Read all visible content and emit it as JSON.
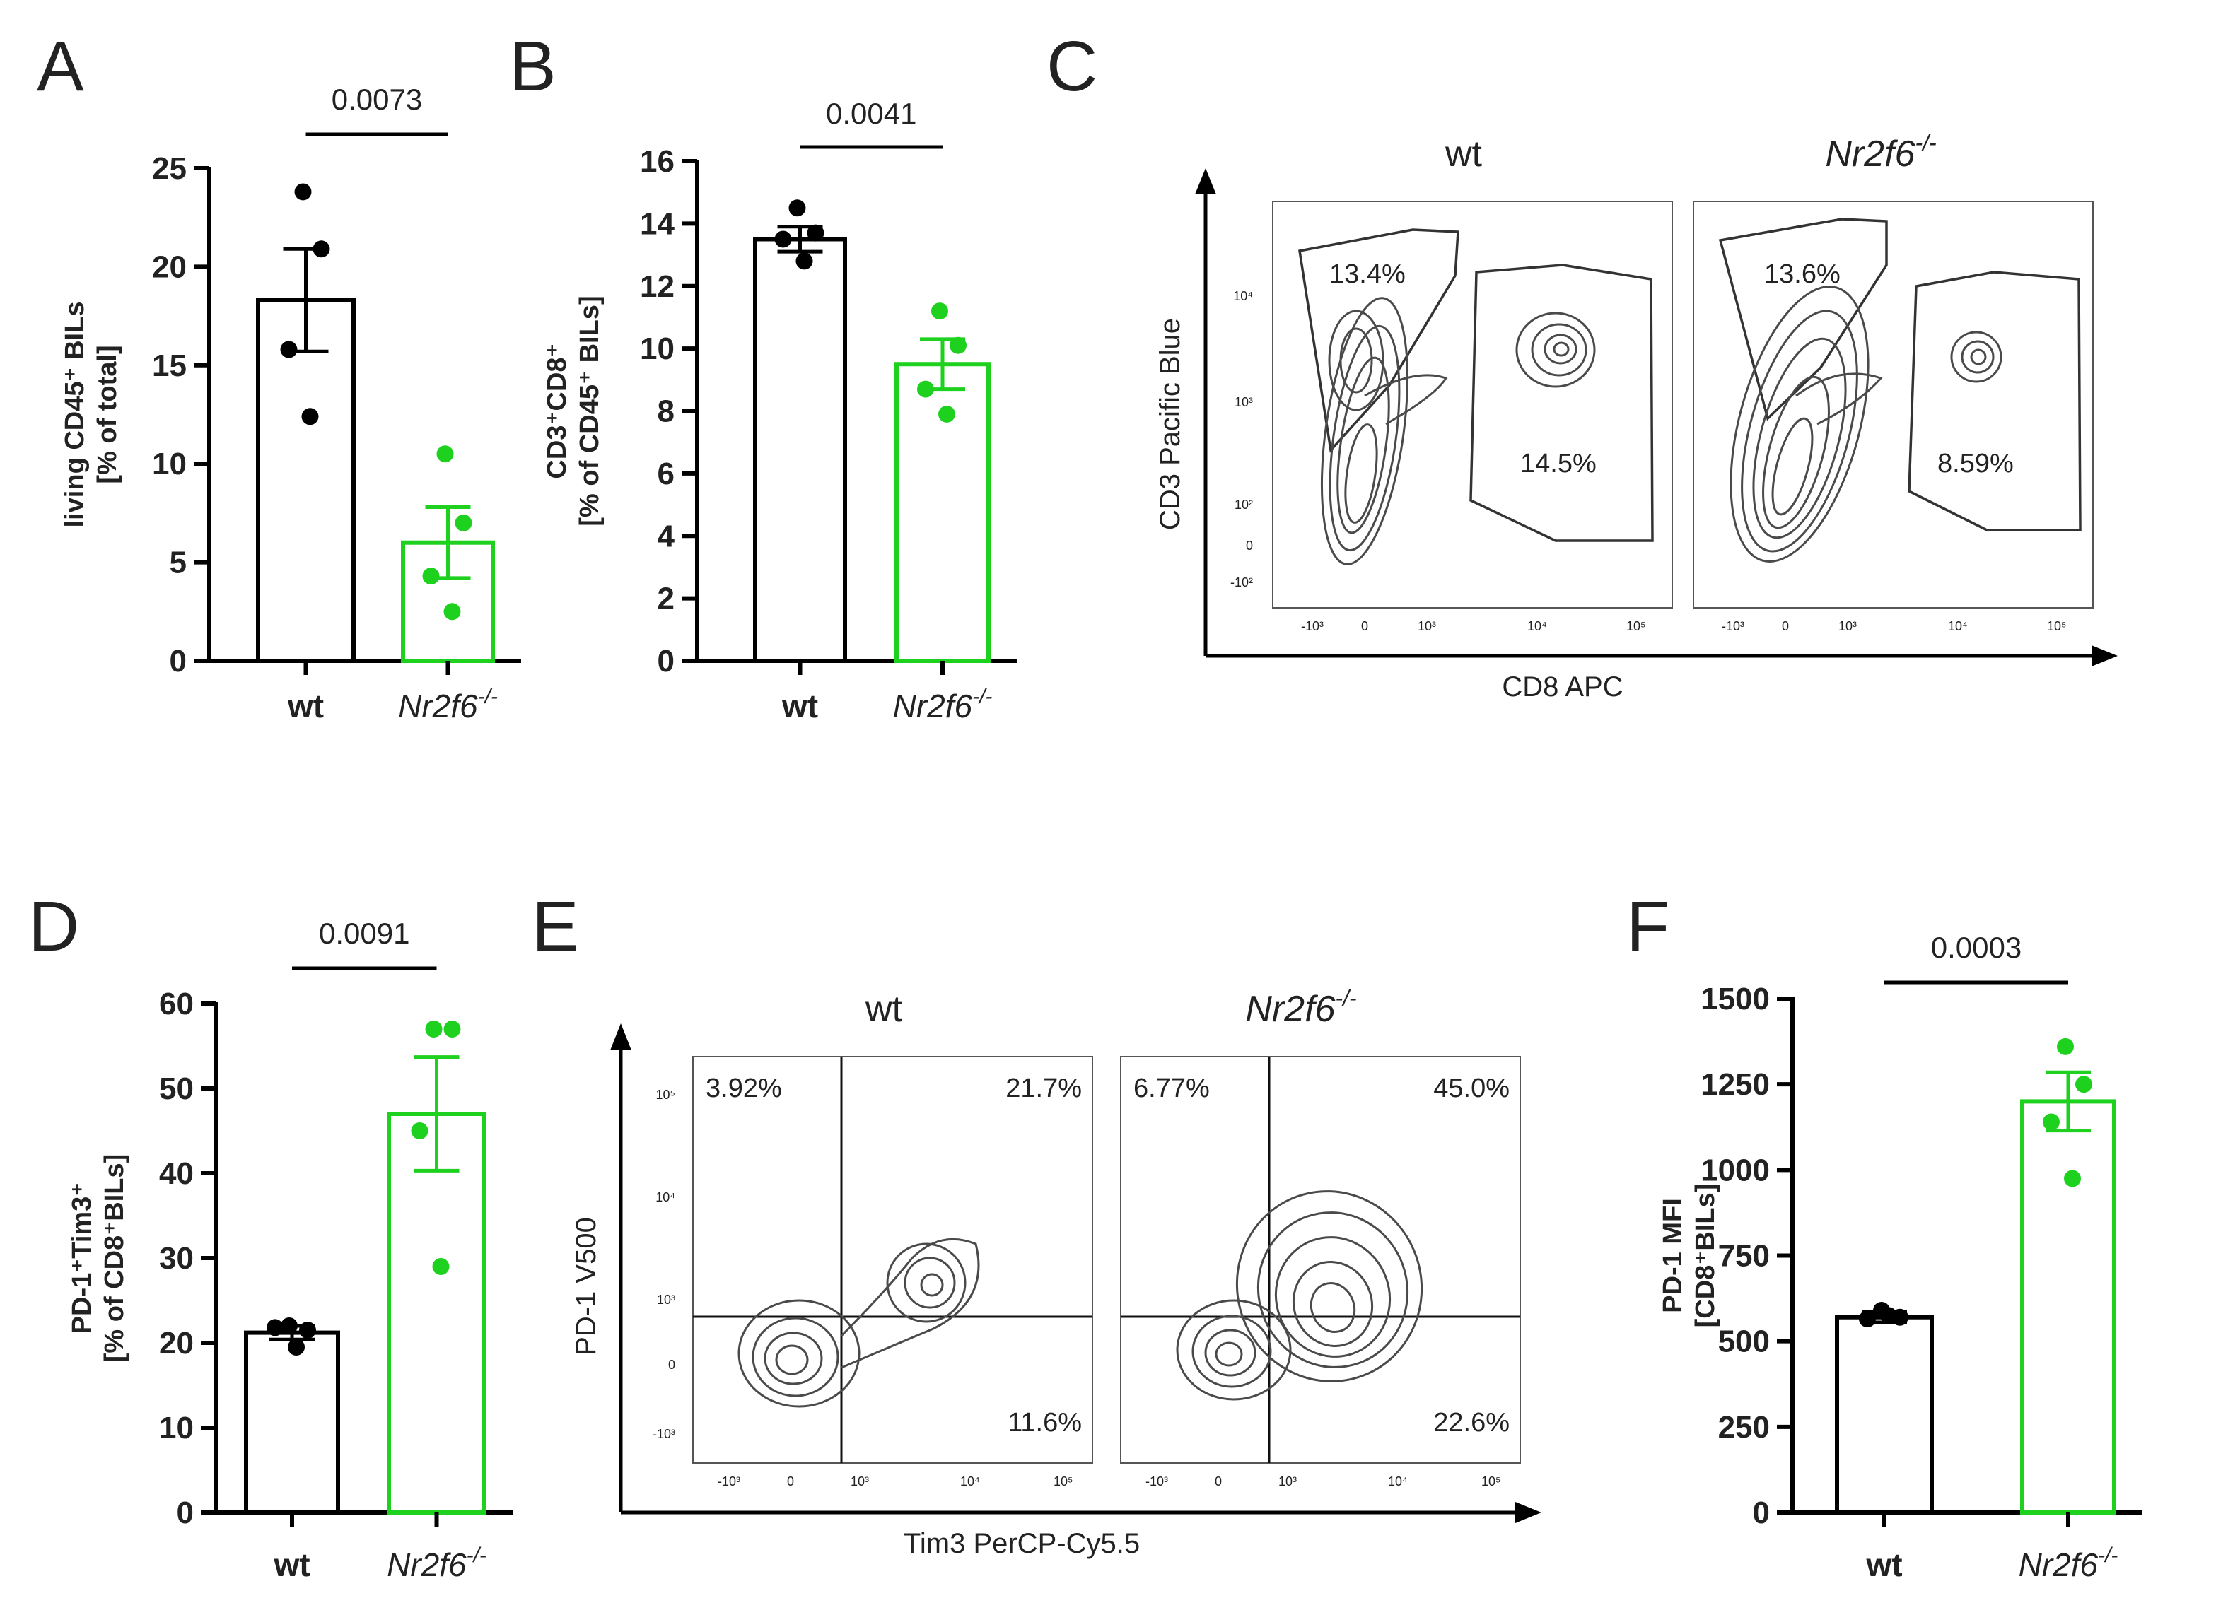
{
  "panels": {
    "A": "A",
    "B": "B",
    "C": "C",
    "D": "D",
    "E": "E",
    "F": "F"
  },
  "colors": {
    "wt": "#000000",
    "ko": "#1fd11f",
    "flow_contour": "#4a4a4a",
    "axis": "#000000"
  },
  "chart_data": [
    {
      "panel": "A",
      "type": "bar",
      "categories": [
        "wt",
        "Nr2f6"
      ],
      "category_superscript": "-/-",
      "ylabel_lines": [
        "living CD45⁺ BILs",
        "[% of total]"
      ],
      "ylim": [
        0,
        25
      ],
      "yticks": [
        0,
        5,
        10,
        15,
        20,
        25
      ],
      "pvalue": "0.0073",
      "series": [
        {
          "name": "wt",
          "mean": 18.3,
          "sem": 2.6,
          "points": [
            23.8,
            20.9,
            15.8,
            12.4
          ]
        },
        {
          "name": "Nr2f6",
          "mean": 6.0,
          "sem": 1.8,
          "points": [
            10.5,
            7.0,
            4.3,
            2.5
          ]
        }
      ]
    },
    {
      "panel": "B",
      "type": "bar",
      "categories": [
        "wt",
        "Nr2f6"
      ],
      "category_superscript": "-/-",
      "ylabel_lines": [
        "CD3⁺CD8⁺",
        "[% of  CD45⁺ BILs]"
      ],
      "ylim": [
        0,
        16
      ],
      "yticks": [
        0,
        2,
        4,
        6,
        8,
        10,
        12,
        14,
        16
      ],
      "pvalue": "0.0041",
      "series": [
        {
          "name": "wt",
          "mean": 13.5,
          "sem": 0.4,
          "points": [
            14.5,
            13.7,
            13.5,
            12.8
          ]
        },
        {
          "name": "Nr2f6",
          "mean": 9.5,
          "sem": 0.8,
          "points": [
            11.2,
            10.1,
            8.7,
            7.9
          ]
        }
      ]
    },
    {
      "panel": "D",
      "type": "bar",
      "categories": [
        "wt",
        "Nr2f6"
      ],
      "category_superscript": "-/-",
      "ylabel_lines": [
        "PD-1⁺Tim3⁺",
        "[% of CD8⁺BILs]"
      ],
      "ylim": [
        0,
        60
      ],
      "yticks": [
        0,
        10,
        20,
        30,
        40,
        50,
        60
      ],
      "pvalue": "0.0091",
      "series": [
        {
          "name": "wt",
          "mean": 21.2,
          "sem": 0.8,
          "points": [
            22.0,
            21.5,
            21.8,
            19.5
          ]
        },
        {
          "name": "Nr2f6",
          "mean": 47.0,
          "sem": 6.7,
          "points": [
            57.0,
            57.0,
            45.0,
            29.0
          ]
        }
      ]
    },
    {
      "panel": "F",
      "type": "bar",
      "categories": [
        "wt",
        "Nr2f6"
      ],
      "category_superscript": "-/-",
      "ylabel_lines": [
        "PD-1 MFI",
        "[CD8⁺BILs]"
      ],
      "ylim": [
        0,
        1500
      ],
      "yticks": [
        0,
        250,
        500,
        750,
        1000,
        1250,
        1500
      ],
      "pvalue": "0.0003",
      "series": [
        {
          "name": "wt",
          "mean": 570,
          "sem": 15,
          "points": [
            590,
            570,
            565,
            575
          ]
        },
        {
          "name": "Nr2f6",
          "mean": 1200,
          "sem": 85,
          "points": [
            1360,
            1250,
            1140,
            975
          ]
        }
      ]
    }
  ],
  "flow_C": {
    "samples": [
      "wt",
      "Nr2f6"
    ],
    "sample_superscript": "-/-",
    "xlabel": "CD8 APC",
    "ylabel": "CD3 Pacific Blue",
    "gates": {
      "wt": [
        "13.4%",
        "14.5%"
      ],
      "Nr2f6": [
        "13.6%",
        "8.59%"
      ]
    },
    "x_ticks": [
      "-10³",
      "0",
      "10³",
      "10⁴",
      "10⁵"
    ],
    "y_ticks": [
      "10⁴",
      "10³",
      "10²",
      "0",
      "-10²"
    ]
  },
  "flow_E": {
    "samples": [
      "wt",
      "Nr2f6"
    ],
    "sample_superscript": "-/-",
    "xlabel": "Tim3  PerCP-Cy5.5",
    "ylabel": "PD-1 V500",
    "quadrants": {
      "wt": [
        "3.92%",
        "21.7%",
        "11.6%"
      ],
      "Nr2f6": [
        "6.77%",
        "45.0%",
        "22.6%"
      ]
    },
    "x_ticks": [
      "-10³",
      "0",
      "10³",
      "10⁴",
      "10⁵"
    ],
    "y_ticks": [
      "10⁵",
      "10⁴",
      "10³",
      "0",
      "-10³"
    ]
  }
}
